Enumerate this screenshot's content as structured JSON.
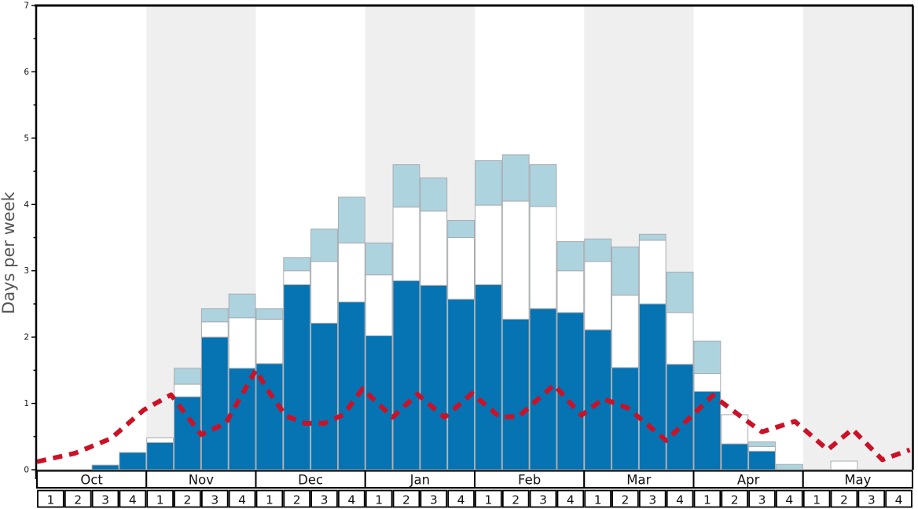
{
  "chart_data": {
    "type": "bar",
    "subtype": "stacked-bar-with-dashed-line",
    "title": "",
    "xlabel": "",
    "ylabel": "Days per week",
    "ylim": [
      0,
      7
    ],
    "y_major_ticks": [
      0,
      1,
      2,
      3,
      4,
      5,
      6,
      7
    ],
    "y_minor_step": 0.5,
    "grid": false,
    "legend": "none",
    "months": [
      "Oct",
      "Nov",
      "Dec",
      "Jan",
      "Feb",
      "Mar",
      "Apr",
      "May"
    ],
    "weeks_per_month": [
      "1",
      "2",
      "3",
      "4"
    ],
    "shaded_months": [
      "Nov",
      "Jan",
      "Mar",
      "May"
    ],
    "band_color_plain": "#FFFFFF",
    "band_color_shaded": "#EFEFF0",
    "series": [
      {
        "name": "dark-blue-days",
        "color": "#0673B2",
        "values": [
          0,
          0,
          0.07,
          0.26,
          0.41,
          1.1,
          2.0,
          1.53,
          1.6,
          2.79,
          2.21,
          2.53,
          2.02,
          2.85,
          2.78,
          2.57,
          2.79,
          2.27,
          2.43,
          2.37,
          2.11,
          1.54,
          2.5,
          1.59,
          1.18,
          0.39,
          0.28,
          0,
          0,
          0,
          0,
          0
        ]
      },
      {
        "name": "white-days",
        "color": "#FFFFFF",
        "values": [
          0,
          0,
          0,
          0,
          0.07,
          0.19,
          0.23,
          0.76,
          0.67,
          0.21,
          0.93,
          0.89,
          0.92,
          1.11,
          1.12,
          0.93,
          1.2,
          1.78,
          1.54,
          0.63,
          1.03,
          1.09,
          0.96,
          0.78,
          0.27,
          0.44,
          0.07,
          0,
          0,
          0.13,
          0,
          0
        ]
      },
      {
        "name": "light-blue-days",
        "color": "#ADD3DF",
        "values": [
          0,
          0,
          0,
          0,
          0,
          0.24,
          0.2,
          0.36,
          0.16,
          0.2,
          0.49,
          0.69,
          0.48,
          0.64,
          0.5,
          0.26,
          0.67,
          0.7,
          0.63,
          0.44,
          0.34,
          0.73,
          0.09,
          0.61,
          0.49,
          0,
          0.07,
          0.08,
          0,
          0,
          0,
          0
        ]
      }
    ],
    "line": {
      "name": "red-dashed-line",
      "color": "#CC1126",
      "width": 6,
      "dash": [
        12,
        9
      ],
      "points_week_units": [
        [
          0,
          0.12
        ],
        [
          1.4,
          0.25
        ],
        [
          2.7,
          0.47
        ],
        [
          3.9,
          0.9
        ],
        [
          4.9,
          1.13
        ],
        [
          6.0,
          0.53
        ],
        [
          6.9,
          0.7
        ],
        [
          8.0,
          1.5
        ],
        [
          8.5,
          1.16
        ],
        [
          9.1,
          0.81
        ],
        [
          9.8,
          0.7
        ],
        [
          10.5,
          0.7
        ],
        [
          11.2,
          0.83
        ],
        [
          11.9,
          1.22
        ],
        [
          13.0,
          0.79
        ],
        [
          13.9,
          1.14
        ],
        [
          14.9,
          0.79
        ],
        [
          15.9,
          1.15
        ],
        [
          16.9,
          0.8
        ],
        [
          17.6,
          0.8
        ],
        [
          18.9,
          1.28
        ],
        [
          19.9,
          0.82
        ],
        [
          20.7,
          1.07
        ],
        [
          21.6,
          0.93
        ],
        [
          23.0,
          0.44
        ],
        [
          24.7,
          1.12
        ],
        [
          25.8,
          0.78
        ],
        [
          26.5,
          0.57
        ],
        [
          27.7,
          0.73
        ],
        [
          28.9,
          0.3
        ],
        [
          29.8,
          0.61
        ],
        [
          30.9,
          0.15
        ],
        [
          31.9,
          0.3
        ]
      ]
    },
    "bar_border_color": "#A9ACB0",
    "frame_color": "#000000",
    "baseline_color": "#999999",
    "tick_label_color": "#111111"
  }
}
